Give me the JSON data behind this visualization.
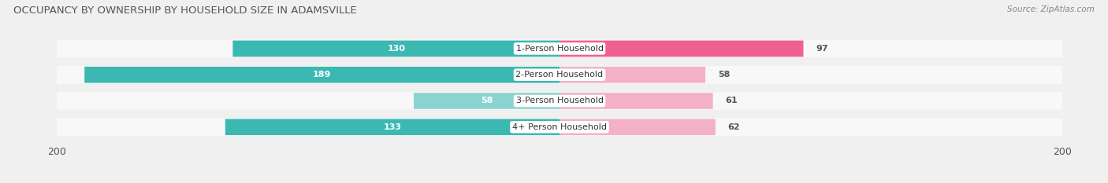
{
  "title": "OCCUPANCY BY OWNERSHIP BY HOUSEHOLD SIZE IN ADAMSVILLE",
  "source": "Source: ZipAtlas.com",
  "categories": [
    "1-Person Household",
    "2-Person Household",
    "3-Person Household",
    "4+ Person Household"
  ],
  "owner_values": [
    130,
    189,
    58,
    133
  ],
  "renter_values": [
    97,
    58,
    61,
    62
  ],
  "owner_color": "#3CB8B2",
  "owner_color_light": "#8AD4D0",
  "renter_color_dark": "#F06090",
  "renter_color_light": "#F4B0C8",
  "background_color": "#f0f0f0",
  "bar_bg_color": "#e8e8e8",
  "row_bg_color": "#f8f8f8",
  "axis_max": 200,
  "bar_height": 0.62,
  "title_fontsize": 9.5,
  "source_fontsize": 7.5,
  "legend_fontsize": 8.5,
  "tick_fontsize": 9,
  "value_fontsize": 8,
  "category_fontsize": 8
}
